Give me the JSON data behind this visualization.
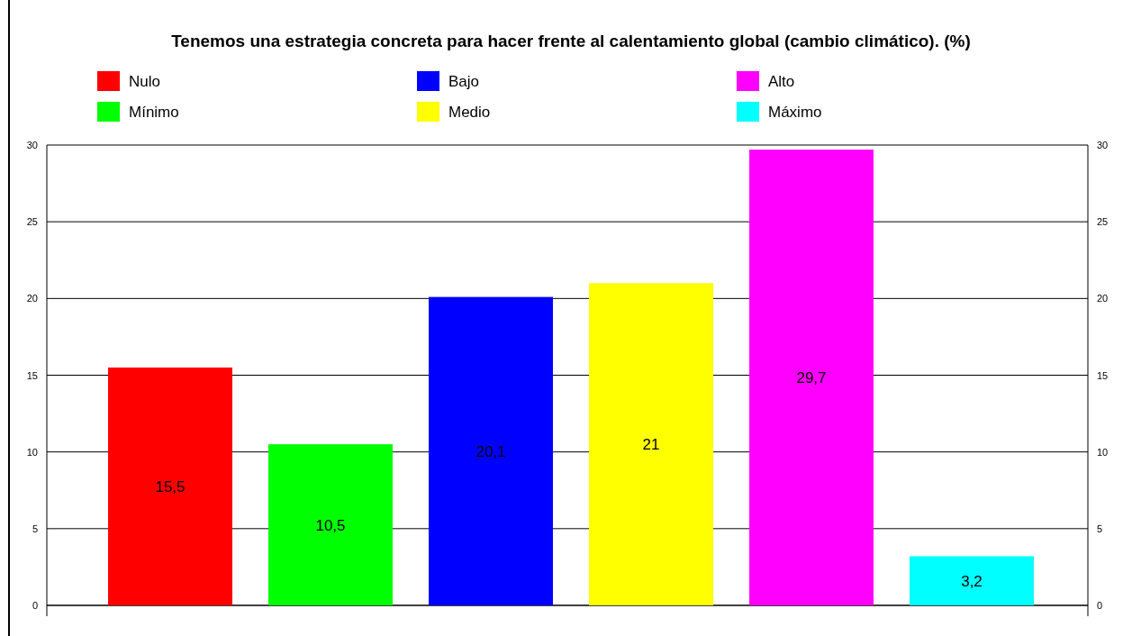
{
  "chart_data": {
    "type": "bar",
    "title": "Tenemos una estrategia concreta para hacer frente al calentamiento global (cambio climático). (%)",
    "categories": [
      null,
      null,
      null,
      null,
      null,
      null
    ],
    "series": [
      {
        "name": "Nulo",
        "color": "#ff0000",
        "values": [
          15.5,
          null,
          null,
          null,
          null,
          null
        ]
      },
      {
        "name": "Mínimo",
        "color": "#00ff00",
        "values": [
          null,
          10.5,
          null,
          null,
          null,
          null
        ]
      },
      {
        "name": "Bajo",
        "color": "#0000ff",
        "values": [
          null,
          null,
          20.1,
          null,
          null,
          null
        ]
      },
      {
        "name": "Medio",
        "color": "#ffff00",
        "values": [
          null,
          null,
          null,
          21,
          null,
          null
        ]
      },
      {
        "name": "Alto",
        "color": "#ff00ff",
        "values": [
          null,
          null,
          null,
          null,
          29.7,
          null
        ]
      },
      {
        "name": "Máximo",
        "color": "#00ffff",
        "values": [
          null,
          null,
          null,
          null,
          null,
          3.2
        ]
      }
    ],
    "value_labels": [
      [
        "15,5",
        null,
        null,
        null,
        null,
        null
      ],
      [
        null,
        "10,5",
        null,
        null,
        null,
        null
      ],
      [
        null,
        null,
        "20,1",
        null,
        null,
        null
      ],
      [
        null,
        null,
        null,
        "21",
        null,
        null
      ],
      [
        null,
        null,
        null,
        null,
        "29,7",
        null
      ],
      [
        null,
        null,
        null,
        null,
        null,
        "3,2"
      ]
    ],
    "ylim": [
      0,
      30
    ],
    "yticks": [
      0,
      5,
      10,
      15,
      20,
      25,
      30
    ],
    "y2lim": [
      0,
      30
    ],
    "y2ticks": [
      0,
      5,
      10,
      15,
      20,
      25,
      30
    ],
    "grid": "y",
    "legend": "top"
  }
}
